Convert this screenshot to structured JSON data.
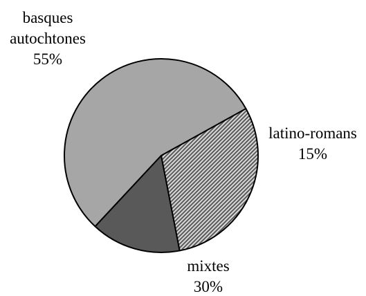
{
  "chart_data": {
    "type": "pie",
    "title": "",
    "slices": [
      {
        "label_lines": [
          "basques",
          "autochtones"
        ],
        "value": 55,
        "value_label": "55%",
        "color": "#a6a6a6",
        "pattern": "solid"
      },
      {
        "label_lines": [
          "latino-romans"
        ],
        "value": 15,
        "value_label": "15%",
        "color": "#595959",
        "pattern": "solid"
      },
      {
        "label_lines": [
          "mixtes"
        ],
        "value": 30,
        "value_label": "30%",
        "color": "#8c8c8c",
        "pattern": "diagonal-hatch"
      }
    ],
    "start_direction": "upper-right, moving counter-clockwise from basques autochtones",
    "legend": "none"
  }
}
